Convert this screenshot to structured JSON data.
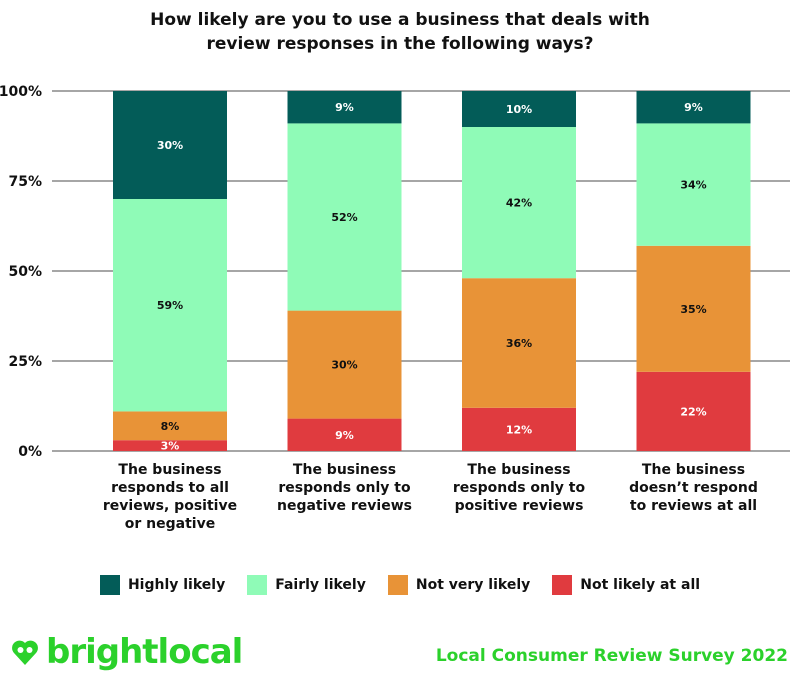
{
  "chart_data": {
    "type": "bar",
    "stacked": true,
    "title": "How likely are you to use a business that deals with review responses in the following ways?",
    "title_lines": [
      "How likely are you to use a business that deals with",
      "review responses in the following ways?"
    ],
    "categories": [
      [
        "The business",
        "responds to all",
        "reviews, positive",
        "or negative"
      ],
      [
        "The business",
        "responds only to",
        "negative reviews"
      ],
      [
        "The business",
        "responds only to",
        "positive reviews"
      ],
      [
        "The business",
        "doesn’t respond",
        "to reviews at all"
      ]
    ],
    "series": [
      {
        "name": "Not likely at all",
        "color": "#e03b3f",
        "label_color": "#ffffff",
        "values": [
          3,
          9,
          12,
          22
        ]
      },
      {
        "name": "Not very likely",
        "color": "#e89337",
        "label_color": "#111111",
        "values": [
          8,
          30,
          36,
          35
        ]
      },
      {
        "name": "Fairly likely",
        "color": "#8ffbb7",
        "label_color": "#111111",
        "values": [
          59,
          52,
          42,
          34
        ]
      },
      {
        "name": "Highly likely",
        "color": "#035c58",
        "label_color": "#ffffff",
        "values": [
          30,
          9,
          10,
          9
        ]
      }
    ],
    "legend_order": [
      "Highly likely",
      "Fairly likely",
      "Not very likely",
      "Not likely at all"
    ],
    "yticks": [
      "0%",
      "25%",
      "50%",
      "75%",
      "100%"
    ],
    "ylim": [
      0,
      100
    ],
    "grid": true,
    "legend_position": "bottom"
  },
  "footer": {
    "brand": "brightlocal",
    "survey": "Local Consumer Review Survey 2022",
    "brand_color": "#2bd12b"
  }
}
